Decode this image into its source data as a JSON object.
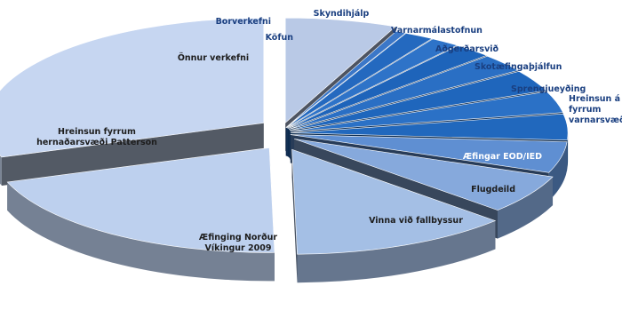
{
  "chart_data": {
    "type": "pie",
    "style": "exploded-3d",
    "legend": "none",
    "slices": [
      {
        "label": "Önnur verkefni",
        "value": 6.5,
        "color": "#b9c9e6",
        "label_color": "#1d1d1d"
      },
      {
        "label": "Borverkefni",
        "value": 0.6,
        "color": "#3b77c8",
        "label_color": "#1a3f80"
      },
      {
        "label": "Köfun",
        "value": 1.7,
        "color": "#2469bf",
        "label_color": "#1a3f80"
      },
      {
        "label": "Skyndihjálp",
        "value": 1.7,
        "color": "#2e73c8",
        "label_color": "#1a3f80"
      },
      {
        "label": "Varnarmálastofnun",
        "value": 2.2,
        "color": "#1e64ba",
        "label_color": "#1a3f80"
      },
      {
        "label": "Aðgerðarsvið",
        "value": 2.8,
        "color": "#2a6fc4",
        "label_color": "#1a3f80"
      },
      {
        "label": "Skotæfingaþjálfun",
        "value": 3.3,
        "color": "#1f66bc",
        "label_color": "#1a3f80"
      },
      {
        "label": "Sprengjueyðing",
        "value": 3.3,
        "color": "#2b71c6",
        "label_color": "#1a3f80"
      },
      {
        "label": "Hreinsun á fyrrum varnarsvæði",
        "value": 4.0,
        "color": "#2168bd",
        "label_color": "#1a3f80"
      },
      {
        "label": "Æfingar EOD/IED",
        "value": 4.8,
        "color": "#5f8fd2",
        "label_color": "#ffffff"
      },
      {
        "label": "Flugdeild",
        "value": 6.0,
        "color": "#86a9dc",
        "label_color": "#1d1d1d"
      },
      {
        "label": "Vinna við fallbyssur",
        "value": 12.8,
        "color": "#a4bfe5",
        "label_color": "#1d1d1d"
      },
      {
        "label": "Æfinging Norður Víkingur 2009",
        "value": 20.0,
        "color": "#bdd0ee",
        "label_color": "#1d1d1d"
      },
      {
        "label": "Hreinsun fyrrum hernaðarsvæði Patterson",
        "value": 30.3,
        "color": "#c6d6f1",
        "label_color": "#1d1d1d"
      }
    ]
  }
}
